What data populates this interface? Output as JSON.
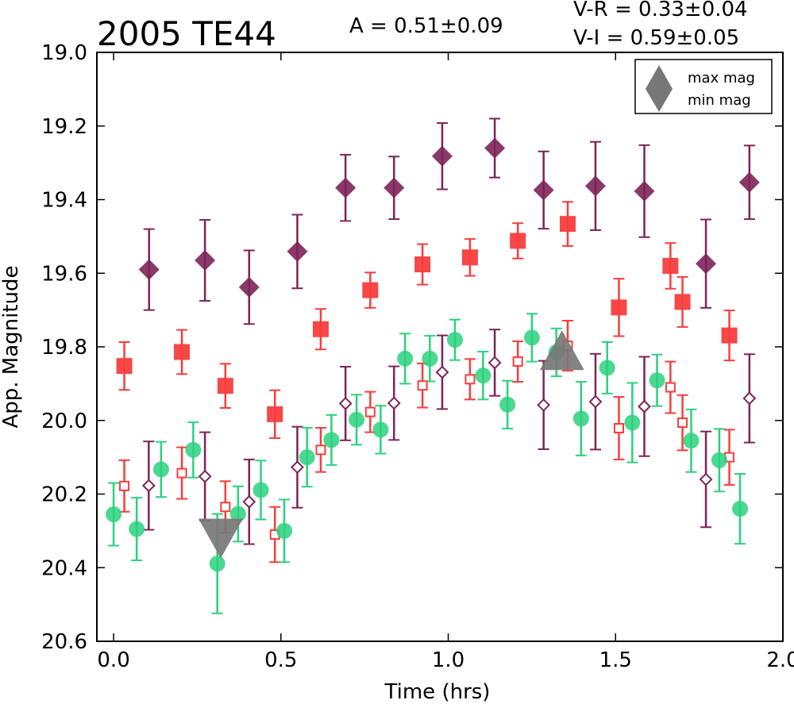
{
  "chart_data": {
    "type": "scatter",
    "title": "2005 TE44",
    "amplitude_label": "A  = 0.51±0.09",
    "color_labels": [
      "V-R = 0.33±0.04",
      "V-I  = 0.59±0.05"
    ],
    "xlabel": "Time (hrs)",
    "ylabel": "App. Magnitude",
    "xlim": [
      -0.05,
      2.0
    ],
    "ylim": [
      20.6,
      19.0
    ],
    "y_inverted": true,
    "x_ticks": [
      0.0,
      0.5,
      1.0,
      1.5,
      2.0
    ],
    "x_tick_labels": [
      "0.0",
      "0.5",
      "1.0",
      "1.5",
      "2.0"
    ],
    "y_ticks": [
      19.0,
      19.2,
      19.4,
      19.6,
      19.8,
      20.0,
      20.2,
      20.4,
      20.6
    ],
    "y_tick_labels": [
      "19.0",
      "19.2",
      "19.4",
      "19.6",
      "19.8",
      "20.0",
      "20.2",
      "20.4",
      "20.6"
    ],
    "grid": false,
    "legend": {
      "placement": "top-right",
      "entries": [
        {
          "label": "max mag",
          "marker": "triangle-up",
          "color": "#777777"
        },
        {
          "label": "min mag",
          "marker": "triangle-down",
          "color": "#777777"
        }
      ]
    },
    "series": [
      {
        "marker": "diamond-filled",
        "color": "#7d2458",
        "points": [
          {
            "x": 0.106,
            "y": 19.59,
            "err": 0.11
          },
          {
            "x": 0.273,
            "y": 19.565,
            "err": 0.11
          },
          {
            "x": 0.405,
            "y": 19.638,
            "err": 0.1
          },
          {
            "x": 0.549,
            "y": 19.541,
            "err": 0.1
          },
          {
            "x": 0.693,
            "y": 19.368,
            "err": 0.09
          },
          {
            "x": 0.838,
            "y": 19.368,
            "err": 0.085
          },
          {
            "x": 0.982,
            "y": 19.282,
            "err": 0.09
          },
          {
            "x": 1.139,
            "y": 19.26,
            "err": 0.08
          },
          {
            "x": 1.285,
            "y": 19.374,
            "err": 0.105
          },
          {
            "x": 1.44,
            "y": 19.363,
            "err": 0.12
          },
          {
            "x": 1.586,
            "y": 19.377,
            "err": 0.125
          },
          {
            "x": 1.77,
            "y": 19.574,
            "err": 0.12
          },
          {
            "x": 1.9,
            "y": 19.353,
            "err": 0.1
          }
        ]
      },
      {
        "marker": "square-filled",
        "color": "#f73d3d",
        "points": [
          {
            "x": 0.032,
            "y": 19.852,
            "err": 0.065
          },
          {
            "x": 0.204,
            "y": 19.814,
            "err": 0.06
          },
          {
            "x": 0.334,
            "y": 19.906,
            "err": 0.06
          },
          {
            "x": 0.482,
            "y": 19.983,
            "err": 0.065
          },
          {
            "x": 0.619,
            "y": 19.752,
            "err": 0.055
          },
          {
            "x": 0.767,
            "y": 19.646,
            "err": 0.048
          },
          {
            "x": 0.923,
            "y": 19.576,
            "err": 0.055
          },
          {
            "x": 1.065,
            "y": 19.557,
            "err": 0.05
          },
          {
            "x": 1.208,
            "y": 19.512,
            "err": 0.048
          },
          {
            "x": 1.357,
            "y": 19.466,
            "err": 0.06
          },
          {
            "x": 1.51,
            "y": 19.693,
            "err": 0.078
          },
          {
            "x": 1.664,
            "y": 19.58,
            "err": 0.062
          },
          {
            "x": 1.7,
            "y": 19.678,
            "err": 0.068
          },
          {
            "x": 1.84,
            "y": 19.769,
            "err": 0.068
          }
        ]
      },
      {
        "marker": "diamond-open",
        "color": "#7d2458",
        "points": [
          {
            "x": 0.105,
            "y": 20.177,
            "err": 0.12
          },
          {
            "x": 0.273,
            "y": 20.152,
            "err": 0.12
          },
          {
            "x": 0.405,
            "y": 20.221,
            "err": 0.115
          },
          {
            "x": 0.549,
            "y": 20.127,
            "err": 0.11
          },
          {
            "x": 0.693,
            "y": 19.954,
            "err": 0.1
          },
          {
            "x": 0.838,
            "y": 19.953,
            "err": 0.1
          },
          {
            "x": 0.982,
            "y": 19.869,
            "err": 0.1
          },
          {
            "x": 1.139,
            "y": 19.843,
            "err": 0.09
          },
          {
            "x": 1.285,
            "y": 19.958,
            "err": 0.12
          },
          {
            "x": 1.44,
            "y": 19.949,
            "err": 0.13
          },
          {
            "x": 1.586,
            "y": 19.962,
            "err": 0.135
          },
          {
            "x": 1.77,
            "y": 20.16,
            "err": 0.13
          },
          {
            "x": 1.9,
            "y": 19.94,
            "err": 0.12
          }
        ]
      },
      {
        "marker": "square-open",
        "color": "#f73d3d",
        "points": [
          {
            "x": 0.032,
            "y": 20.178,
            "err": 0.07
          },
          {
            "x": 0.204,
            "y": 20.143,
            "err": 0.07
          },
          {
            "x": 0.334,
            "y": 20.235,
            "err": 0.07
          },
          {
            "x": 0.482,
            "y": 20.31,
            "err": 0.075
          },
          {
            "x": 0.619,
            "y": 20.08,
            "err": 0.06
          },
          {
            "x": 0.767,
            "y": 19.977,
            "err": 0.055
          },
          {
            "x": 0.923,
            "y": 19.905,
            "err": 0.06
          },
          {
            "x": 1.065,
            "y": 19.888,
            "err": 0.055
          },
          {
            "x": 1.208,
            "y": 19.84,
            "err": 0.055
          },
          {
            "x": 1.357,
            "y": 19.797,
            "err": 0.068
          },
          {
            "x": 1.51,
            "y": 20.021,
            "err": 0.085
          },
          {
            "x": 1.664,
            "y": 19.91,
            "err": 0.07
          },
          {
            "x": 1.7,
            "y": 20.006,
            "err": 0.075
          },
          {
            "x": 1.84,
            "y": 20.1,
            "err": 0.075
          }
        ]
      },
      {
        "marker": "circle-filled",
        "color": "#2bd17e",
        "points": [
          {
            "x": 0.0,
            "y": 20.255,
            "err": 0.085
          },
          {
            "x": 0.069,
            "y": 20.295,
            "err": 0.085
          },
          {
            "x": 0.142,
            "y": 20.133,
            "err": 0.075
          },
          {
            "x": 0.238,
            "y": 20.08,
            "err": 0.075
          },
          {
            "x": 0.31,
            "y": 20.389,
            "err": 0.135
          },
          {
            "x": 0.372,
            "y": 20.254,
            "err": 0.075
          },
          {
            "x": 0.44,
            "y": 20.189,
            "err": 0.08
          },
          {
            "x": 0.51,
            "y": 20.3,
            "err": 0.085
          },
          {
            "x": 0.578,
            "y": 20.1,
            "err": 0.08
          },
          {
            "x": 0.651,
            "y": 20.053,
            "err": 0.068
          },
          {
            "x": 0.726,
            "y": 19.998,
            "err": 0.068
          },
          {
            "x": 0.798,
            "y": 20.025,
            "err": 0.065
          },
          {
            "x": 0.871,
            "y": 19.832,
            "err": 0.068
          },
          {
            "x": 0.945,
            "y": 19.832,
            "err": 0.062
          },
          {
            "x": 1.02,
            "y": 19.781,
            "err": 0.055
          },
          {
            "x": 1.104,
            "y": 19.878,
            "err": 0.065
          },
          {
            "x": 1.177,
            "y": 19.957,
            "err": 0.065
          },
          {
            "x": 1.25,
            "y": 19.775,
            "err": 0.065
          },
          {
            "x": 1.323,
            "y": 19.815,
            "err": 0.065
          },
          {
            "x": 1.397,
            "y": 19.995,
            "err": 0.1
          },
          {
            "x": 1.475,
            "y": 19.857,
            "err": 0.07
          },
          {
            "x": 1.55,
            "y": 20.006,
            "err": 0.108
          },
          {
            "x": 1.624,
            "y": 19.891,
            "err": 0.07
          },
          {
            "x": 1.726,
            "y": 20.055,
            "err": 0.085
          },
          {
            "x": 1.81,
            "y": 20.108,
            "err": 0.085
          },
          {
            "x": 1.872,
            "y": 20.24,
            "err": 0.095
          }
        ]
      }
    ],
    "extrema": [
      {
        "label": "max mag",
        "marker": "triangle-up",
        "color": "#777777",
        "x": 1.34,
        "y": 19.82
      },
      {
        "label": "min mag",
        "marker": "triangle-down",
        "color": "#777777",
        "x": 0.32,
        "y": 20.31
      }
    ]
  }
}
